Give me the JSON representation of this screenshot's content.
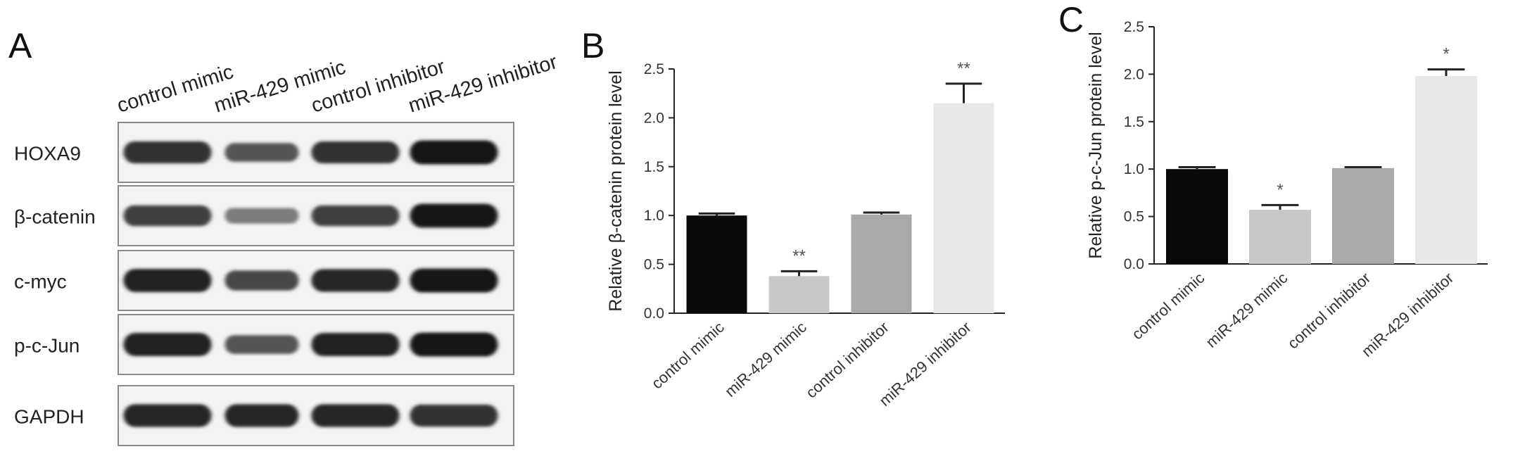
{
  "panels": {
    "A": {
      "letter": "A"
    },
    "B": {
      "letter": "B"
    },
    "C": {
      "letter": "C"
    }
  },
  "blot": {
    "lanes": [
      "control mimic",
      "miR-429 mimic",
      "control inhibitor",
      "miR-429 inhibitor"
    ],
    "rows": [
      {
        "label": "HOXA9",
        "intensity": [
          0.85,
          0.6,
          0.85,
          1.0
        ]
      },
      {
        "label": "β-catenin",
        "intensity": [
          0.75,
          0.35,
          0.75,
          1.0
        ]
      },
      {
        "label": "c-myc",
        "intensity": [
          0.95,
          0.7,
          0.9,
          1.0
        ]
      },
      {
        "label": "p-c-Jun",
        "intensity": [
          0.95,
          0.6,
          0.95,
          1.0
        ]
      },
      {
        "label": "GAPDH",
        "intensity": [
          0.9,
          0.9,
          0.9,
          0.85
        ]
      }
    ]
  },
  "chart_data": [
    {
      "panel": "B",
      "type": "bar",
      "categories": [
        "control mimic",
        "miR-429 mimic",
        "control inhibitor",
        "miR-429 inhibitor"
      ],
      "values": [
        1.0,
        0.38,
        1.01,
        2.15
      ],
      "errors": [
        0.02,
        0.05,
        0.02,
        0.2
      ],
      "significance": [
        "",
        "**",
        "",
        "**"
      ],
      "bar_colors": [
        "#0a0a0a",
        "#c8c8c8",
        "#a9a9a9",
        "#e8e8e8"
      ],
      "ylabel": "Relative β-catenin protein level",
      "xlabel": "",
      "ylim": [
        0,
        2.5
      ],
      "yticks": [
        "0.0",
        "0.5",
        "1.0",
        "1.5",
        "2.0",
        "2.5"
      ],
      "grid": false
    },
    {
      "panel": "C",
      "type": "bar",
      "categories": [
        "control mimic",
        "miR-429 mimic",
        "control inhibitor",
        "miR-429 inhibitor"
      ],
      "values": [
        1.0,
        0.57,
        1.01,
        1.98
      ],
      "errors": [
        0.02,
        0.05,
        0.01,
        0.07
      ],
      "significance": [
        "",
        "*",
        "",
        "*"
      ],
      "bar_colors": [
        "#0a0a0a",
        "#c8c8c8",
        "#a9a9a9",
        "#e8e8e8"
      ],
      "ylabel": "Relative p-c-Jun protein level",
      "xlabel": "",
      "ylim": [
        0,
        2.5
      ],
      "yticks": [
        "0.0",
        "0.5",
        "1.0",
        "1.5",
        "2.0",
        "2.5"
      ],
      "grid": false
    }
  ]
}
